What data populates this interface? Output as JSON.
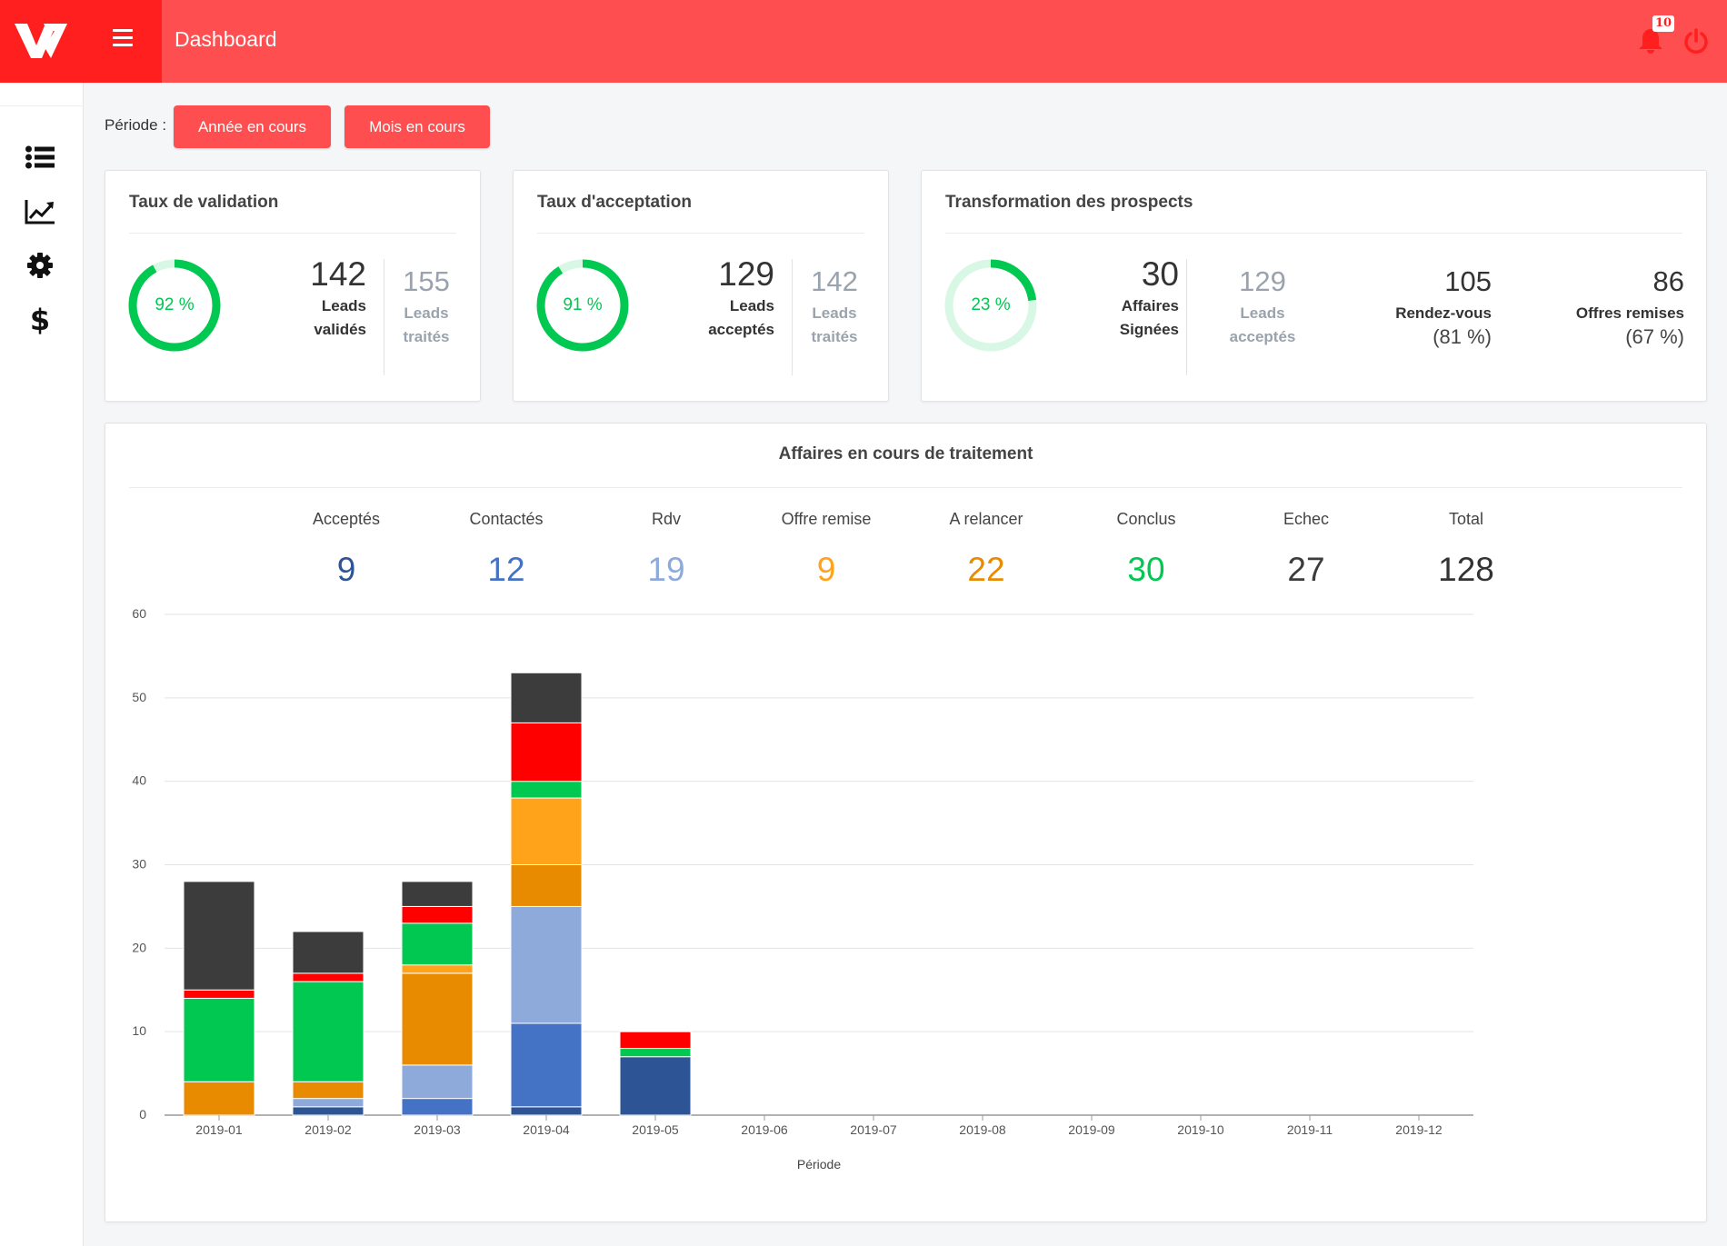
{
  "header": {
    "title": "Dashboard",
    "notifications": "10",
    "accent": "#ff4e4f",
    "logo_bg": "#ff1f1f"
  },
  "sidebar": {
    "icons": [
      "list-icon",
      "line-chart-icon",
      "gear-icon",
      "dollar-icon"
    ],
    "dollar_glyph": "$"
  },
  "period": {
    "label": "Période :",
    "buttons": [
      "Année en cours",
      "Mois en cours"
    ]
  },
  "cards": {
    "validation": {
      "title": "Taux de validation",
      "gauge": "92 %",
      "gauge_value": 92,
      "main_value": "142",
      "main_label_1": "Leads",
      "main_label_2": "validés",
      "sub_value": "155",
      "sub_label_1": "Leads",
      "sub_label_2": "traités"
    },
    "acceptation": {
      "title": "Taux d'acceptation",
      "gauge": "91 %",
      "gauge_value": 91,
      "main_value": "129",
      "main_label_1": "Leads",
      "main_label_2": "acceptés",
      "sub_value": "142",
      "sub_label_1": "Leads",
      "sub_label_2": "traités"
    },
    "transformation": {
      "title": "Transformation des prospects",
      "gauge": "23 %",
      "gauge_value": 23,
      "main_value": "30",
      "main_label_1": "Affaires",
      "main_label_2": "Signées",
      "sub_value": "129",
      "sub_label_1": "Leads",
      "sub_label_2": "acceptés",
      "rdv_value": "105",
      "rdv_label": "Rendez-vous",
      "rdv_pct": "(81 %)",
      "offres_value": "86",
      "offres_label": "Offres remises",
      "offres_pct": "(67 %)"
    }
  },
  "affaires": {
    "title": "Affaires en cours de traitement",
    "summary": [
      {
        "label": "Acceptés",
        "value": "9",
        "color": "#2d5495"
      },
      {
        "label": "Contactés",
        "value": "12",
        "color": "#4472c4"
      },
      {
        "label": "Rdv",
        "value": "19",
        "color": "#8eaadb"
      },
      {
        "label": "Offre remise",
        "value": "9",
        "color": "#ffa31a"
      },
      {
        "label": "A relancer",
        "value": "22",
        "color": "#e98b00"
      },
      {
        "label": "Conclus",
        "value": "30",
        "color": "#00c851"
      },
      {
        "label": "Echec",
        "value": "27",
        "color": "#3c3c3c"
      },
      {
        "label": "Total",
        "value": "128",
        "color": "#333333"
      }
    ]
  },
  "chart_data": {
    "type": "bar",
    "stacked": true,
    "categories": [
      "2019-01",
      "2019-02",
      "2019-03",
      "2019-04",
      "2019-05",
      "2019-06",
      "2019-07",
      "2019-08",
      "2019-09",
      "2019-10",
      "2019-11",
      "2019-12"
    ],
    "xlabel": "Période",
    "ylabel": "",
    "ylim": [
      0,
      60
    ],
    "yticks": [
      0,
      10,
      20,
      30,
      40,
      50,
      60
    ],
    "grid": true,
    "series": [
      {
        "color": "#2d5495",
        "values": [
          0,
          1,
          0,
          1,
          7,
          0,
          0,
          0,
          0,
          0,
          0,
          0
        ]
      },
      {
        "color": "#4472c4",
        "values": [
          0,
          0,
          2,
          10,
          0,
          0,
          0,
          0,
          0,
          0,
          0,
          0
        ]
      },
      {
        "color": "#8eaadb",
        "values": [
          0,
          1,
          4,
          14,
          0,
          0,
          0,
          0,
          0,
          0,
          0,
          0
        ]
      },
      {
        "color": "#e98b00",
        "values": [
          4,
          2,
          11,
          5,
          0,
          0,
          0,
          0,
          0,
          0,
          0,
          0
        ]
      },
      {
        "color": "#ffa31a",
        "values": [
          0,
          0,
          1,
          8,
          0,
          0,
          0,
          0,
          0,
          0,
          0,
          0
        ]
      },
      {
        "color": "#00c851",
        "values": [
          10,
          12,
          5,
          2,
          1,
          0,
          0,
          0,
          0,
          0,
          0,
          0
        ]
      },
      {
        "color": "#ff0000",
        "values": [
          1,
          1,
          2,
          7,
          2,
          0,
          0,
          0,
          0,
          0,
          0,
          0
        ]
      },
      {
        "color": "#3c3c3c",
        "values": [
          13,
          5,
          3,
          6,
          0,
          0,
          0,
          0,
          0,
          0,
          0,
          0
        ]
      }
    ]
  }
}
